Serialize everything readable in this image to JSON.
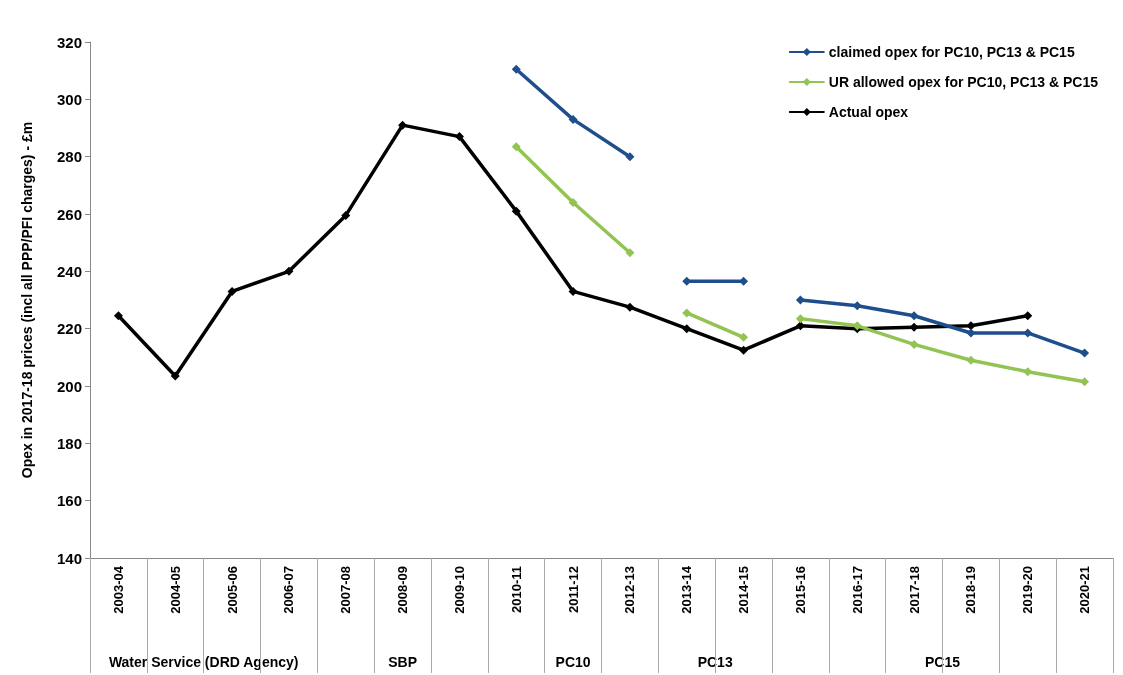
{
  "chart_data": {
    "type": "line",
    "ylabel": "Opex in 2017-18 prices (incl all PPP/PFI charges) - £m",
    "categories": [
      "2003-04",
      "2004-05",
      "2005-06",
      "2006-07",
      "2007-08",
      "2008-09",
      "2009-10",
      "2010-11",
      "2011-12",
      "2012-13",
      "2013-14",
      "2014-15",
      "2015-16",
      "2016-17",
      "2017-18",
      "2018-19",
      "2019-20",
      "2020-21"
    ],
    "series": [
      {
        "name": "claimed opex for PC10, PC13 & PC15",
        "color": "#1f4e8c",
        "values": [
          null,
          null,
          null,
          null,
          null,
          null,
          null,
          310.5,
          293,
          280,
          null,
          null,
          null,
          null,
          null,
          null,
          null,
          null
        ]
      },
      {
        "color": "#1f4e8c",
        "values": [
          null,
          null,
          null,
          null,
          null,
          null,
          null,
          null,
          null,
          null,
          236.5,
          236.5,
          null,
          null,
          null,
          null,
          null,
          null
        ]
      },
      {
        "color": "#1f4e8c",
        "values": [
          null,
          null,
          null,
          null,
          null,
          null,
          null,
          null,
          null,
          null,
          null,
          null,
          230,
          228,
          224.5,
          218.5,
          218.5,
          211.5
        ]
      },
      {
        "name": "UR allowed opex for PC10, PC13 & PC15",
        "color": "#92c353",
        "values": [
          null,
          null,
          null,
          null,
          null,
          null,
          null,
          283.5,
          264,
          246.5,
          null,
          null,
          null,
          null,
          null,
          null,
          null,
          null
        ]
      },
      {
        "color": "#92c353",
        "values": [
          null,
          null,
          null,
          null,
          null,
          null,
          null,
          null,
          null,
          null,
          225.5,
          217,
          null,
          null,
          null,
          null,
          null,
          null
        ]
      },
      {
        "color": "#92c353",
        "values": [
          null,
          null,
          null,
          null,
          null,
          null,
          null,
          null,
          null,
          null,
          null,
          null,
          223.5,
          221,
          214.5,
          209,
          205,
          201.5
        ]
      },
      {
        "name": "Actual opex",
        "color": "#000000",
        "values": [
          224.5,
          203.5,
          233,
          240,
          259.5,
          291,
          287,
          261,
          233,
          227.5,
          220,
          212.5,
          221,
          220,
          220.5,
          221,
          224.5,
          null
        ]
      }
    ],
    "ylim": [
      140,
      320
    ],
    "yticks": [
      140,
      160,
      180,
      200,
      220,
      240,
      260,
      280,
      300,
      320
    ],
    "grid": false,
    "legend": "top right",
    "marker": "diamond",
    "line_style": "solid",
    "annotations": [
      "Water Service (DRD Agency)",
      "SBP",
      "PC10",
      "PC13",
      "PC15"
    ]
  }
}
